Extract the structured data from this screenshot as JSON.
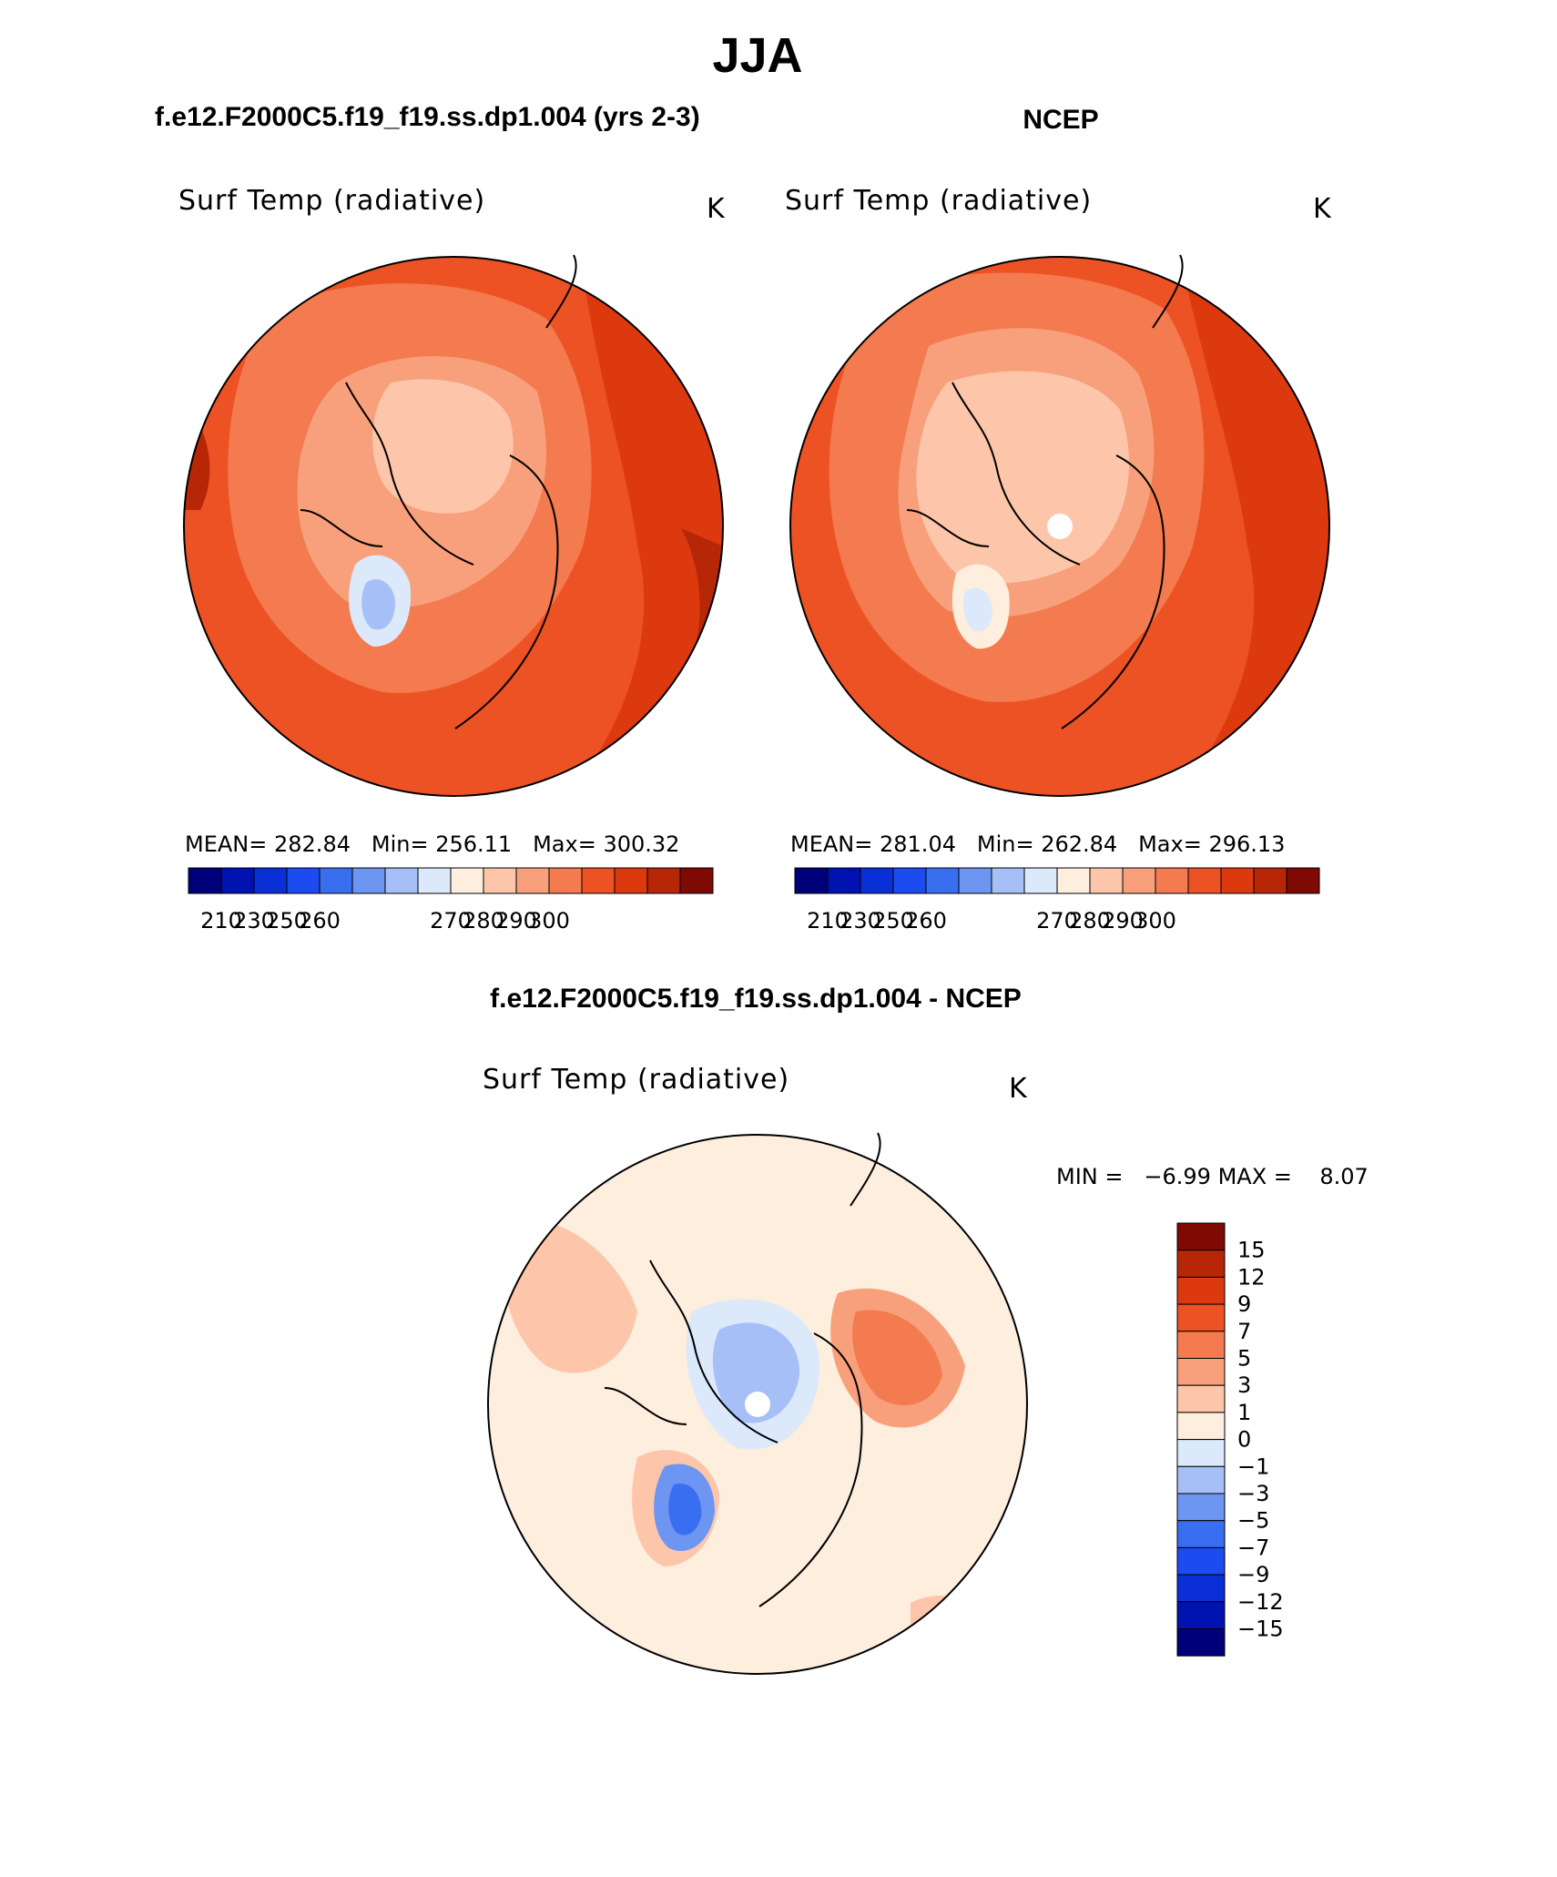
{
  "figure": {
    "title": "JJA"
  },
  "chart_data": [
    {
      "type": "heatmap",
      "projection": "north-polar-stereographic",
      "title": "f.e12.F2000C5.f19_f19.ss.dp1.004 (yrs 2-3)",
      "variable": "Surf Temp (radiative)",
      "units": "K",
      "stats": {
        "mean_label": "MEAN=",
        "mean": "282.84",
        "min_label": "Min=",
        "min": "256.11",
        "max_label": "Max=",
        "max": "300.32"
      },
      "colorbar": {
        "orientation": "horizontal",
        "colors": [
          "#00007a",
          "#0012b0",
          "#0a2fd6",
          "#1c4cf0",
          "#3a6ef0",
          "#6d95f2",
          "#a6c0f7",
          "#dce9fb",
          "#fdeede",
          "#fdc6aa",
          "#f8a07c",
          "#f47a4f",
          "#ed5224",
          "#dc3a0e",
          "#b72707",
          "#7e0a03"
        ],
        "tick_labels": [
          "210",
          "230",
          "250",
          "260",
          "270",
          "280",
          "290",
          "300"
        ]
      }
    },
    {
      "type": "heatmap",
      "projection": "north-polar-stereographic",
      "title": "NCEP",
      "variable": "Surf Temp (radiative)",
      "units": "K",
      "stats": {
        "mean_label": "MEAN=",
        "mean": "281.04",
        "min_label": "Min=",
        "min": "262.84",
        "max_label": "Max=",
        "max": "296.13"
      },
      "colorbar": {
        "orientation": "horizontal",
        "colors": [
          "#00007a",
          "#0012b0",
          "#0a2fd6",
          "#1c4cf0",
          "#3a6ef0",
          "#6d95f2",
          "#a6c0f7",
          "#dce9fb",
          "#fdeede",
          "#fdc6aa",
          "#f8a07c",
          "#f47a4f",
          "#ed5224",
          "#dc3a0e",
          "#b72707",
          "#7e0a03"
        ],
        "tick_labels": [
          "210",
          "230",
          "250",
          "260",
          "270",
          "280",
          "290",
          "300"
        ]
      }
    },
    {
      "type": "heatmap",
      "projection": "north-polar-stereographic",
      "title": "f.e12.F2000C5.f19_f19.ss.dp1.004 - NCEP",
      "variable": "Surf Temp (radiative)",
      "units": "K",
      "stats": {
        "min_label": "MIN =",
        "min": "−6.99",
        "max_label": "MAX =",
        "max": "8.07"
      },
      "colorbar": {
        "orientation": "vertical",
        "colors_top_to_bottom": [
          "#7e0a03",
          "#b72707",
          "#dc3a0e",
          "#ed5224",
          "#f47a4f",
          "#f8a07c",
          "#fdc6aa",
          "#fdeede",
          "#dce9fb",
          "#a6c0f7",
          "#6d95f2",
          "#3a6ef0",
          "#1c4cf0",
          "#0a2fd6",
          "#0012b0",
          "#00007a"
        ],
        "tick_labels_top_to_bottom": [
          "15",
          "12",
          "9",
          "7",
          "5",
          "3",
          "1",
          "0",
          "−1",
          "−3",
          "−5",
          "−7",
          "−9",
          "−12",
          "−15"
        ]
      }
    }
  ]
}
